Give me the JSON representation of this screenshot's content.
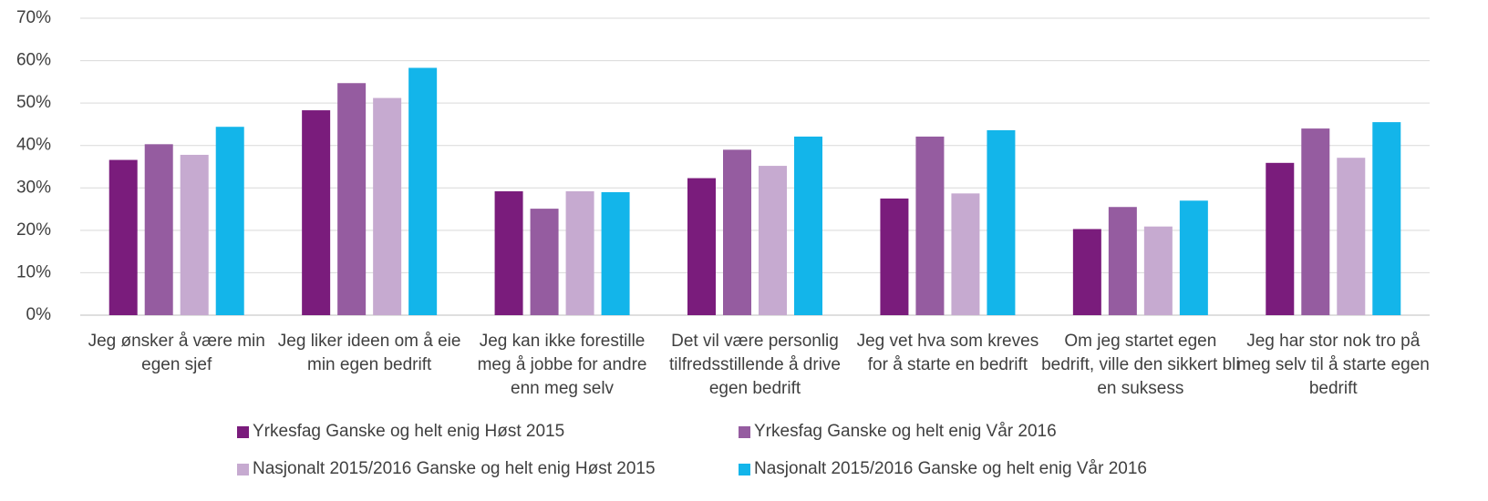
{
  "chart_data": {
    "type": "bar",
    "categories": [
      "Jeg ønsker å være min egen sjef",
      "Jeg liker ideen om å eie min egen bedrift",
      "Jeg kan ikke forestille meg å jobbe for andre enn meg selv",
      "Det vil være personlig tilfredsstillende å drive egen bedrift",
      "Jeg vet hva som kreves for å starte en bedrift",
      "Om jeg startet egen bedrift, ville den sikkert bli en suksess",
      "Jeg har stor nok tro på meg selv til å starte egen bedrift"
    ],
    "series": [
      {
        "name": "Yrkesfag Ganske og helt enig Høst 2015",
        "color": "#7a1c7c",
        "values": [
          36.6,
          48.3,
          29.2,
          32.3,
          27.5,
          20.3,
          35.9
        ]
      },
      {
        "name": "Yrkesfag Ganske og helt enig Vår 2016",
        "color": "#955ca0",
        "values": [
          40.3,
          54.7,
          25.1,
          39.0,
          42.1,
          25.5,
          44.0
        ]
      },
      {
        "name": "Nasjonalt 2015/2016 Ganske og helt enig Høst 2015",
        "color": "#c6aad0",
        "values": [
          37.8,
          51.2,
          29.2,
          35.2,
          28.7,
          20.9,
          37.1
        ]
      },
      {
        "name": "Nasjonalt 2015/2016 Ganske og helt enig Vår 2016",
        "color": "#13b5ea",
        "values": [
          44.4,
          58.3,
          29.0,
          42.1,
          43.6,
          27.0,
          45.5
        ]
      }
    ],
    "ylim": [
      0,
      70
    ],
    "yticks": [
      {
        "value": 0,
        "label": "0%"
      },
      {
        "value": 10,
        "label": "10%"
      },
      {
        "value": 20,
        "label": "20%"
      },
      {
        "value": 30,
        "label": "30%"
      },
      {
        "value": 40,
        "label": "40%"
      },
      {
        "value": 50,
        "label": "50%"
      },
      {
        "value": 60,
        "label": "60%"
      },
      {
        "value": 70,
        "label": "70%"
      }
    ],
    "grid": true,
    "legend": "bottom"
  }
}
